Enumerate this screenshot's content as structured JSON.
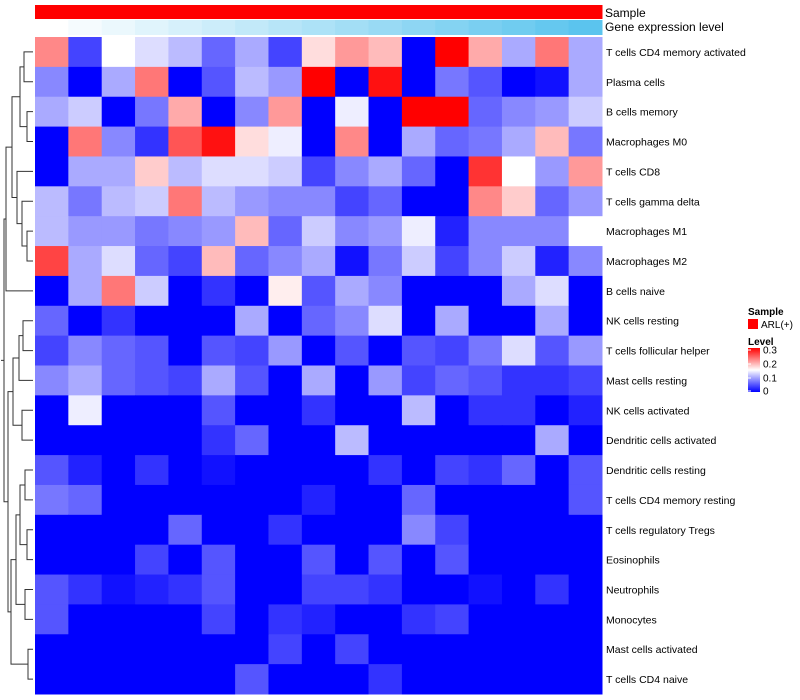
{
  "chart_data": {
    "type": "heatmap",
    "column_annotations": [
      {
        "label": "Sample"
      },
      {
        "label": "Gene expression level"
      }
    ],
    "rows": [
      "T cells CD4 memory activated",
      "Plasma cells",
      "B cells memory",
      "Macrophages M0",
      "T cells CD8",
      "T cells gamma delta",
      "Macrophages M1",
      "Macrophages M2",
      "B cells naive",
      "NK cells resting",
      "T cells follicular helper",
      "Mast cells resting",
      "NK cells activated",
      "Dendritic cells activated",
      "Dendritic cells resting",
      "T cells CD4 memory resting",
      "T cells regulatory  Tregs",
      "Eosinophils",
      "Neutrophils",
      "Monocytes",
      "Mast cells activated",
      "T cells CD4 naive"
    ],
    "n_columns": 17,
    "values": [
      [
        0.22,
        0.04,
        0.15,
        0.13,
        0.11,
        0.06,
        0.1,
        0.04,
        0.17,
        0.21,
        0.19,
        0.0,
        0.3,
        0.2,
        0.1,
        0.23,
        0.1
      ],
      [
        0.08,
        0.0,
        0.1,
        0.23,
        0.0,
        0.05,
        0.11,
        0.09,
        0.3,
        0.0,
        0.29,
        0.0,
        0.07,
        0.05,
        0.0,
        0.01,
        0.1
      ],
      [
        0.1,
        0.12,
        0.0,
        0.07,
        0.2,
        0.0,
        0.08,
        0.21,
        0.0,
        0.14,
        0.0,
        0.3,
        0.3,
        0.06,
        0.08,
        0.09,
        0.12
      ],
      [
        0.0,
        0.23,
        0.08,
        0.03,
        0.25,
        0.29,
        0.17,
        0.14,
        0.0,
        0.22,
        0.0,
        0.1,
        0.06,
        0.07,
        0.1,
        0.19,
        0.07
      ],
      [
        0.0,
        0.1,
        0.1,
        0.18,
        0.11,
        0.13,
        0.13,
        0.12,
        0.04,
        0.08,
        0.1,
        0.06,
        0.0,
        0.27,
        0.15,
        0.09,
        0.21
      ],
      [
        0.11,
        0.07,
        0.11,
        0.12,
        0.23,
        0.11,
        0.09,
        0.08,
        0.08,
        0.04,
        0.06,
        0.0,
        0.0,
        0.22,
        0.18,
        0.06,
        0.09
      ],
      [
        0.11,
        0.09,
        0.09,
        0.07,
        0.08,
        0.09,
        0.19,
        0.06,
        0.12,
        0.08,
        0.09,
        0.14,
        0.02,
        0.08,
        0.08,
        0.08,
        0.15
      ],
      [
        0.26,
        0.1,
        0.13,
        0.06,
        0.04,
        0.19,
        0.06,
        0.08,
        0.1,
        0.01,
        0.07,
        0.12,
        0.04,
        0.08,
        0.12,
        0.02,
        0.08
      ],
      [
        0.0,
        0.1,
        0.23,
        0.12,
        0.0,
        0.03,
        0.0,
        0.16,
        0.05,
        0.1,
        0.08,
        0.0,
        0.0,
        0.0,
        0.1,
        0.13,
        0.0
      ],
      [
        0.06,
        0.0,
        0.03,
        0.0,
        0.0,
        0.0,
        0.1,
        0.0,
        0.06,
        0.08,
        0.13,
        0.0,
        0.1,
        0.0,
        0.0,
        0.1,
        0.0
      ],
      [
        0.04,
        0.08,
        0.06,
        0.05,
        0.0,
        0.05,
        0.04,
        0.09,
        0.0,
        0.05,
        0.0,
        0.05,
        0.04,
        0.07,
        0.13,
        0.05,
        0.09
      ],
      [
        0.08,
        0.1,
        0.06,
        0.05,
        0.04,
        0.1,
        0.05,
        0.0,
        0.1,
        0.0,
        0.09,
        0.04,
        0.06,
        0.05,
        0.03,
        0.03,
        0.04
      ],
      [
        0.0,
        0.14,
        0.0,
        0.0,
        0.0,
        0.05,
        0.0,
        0.0,
        0.03,
        0.0,
        0.0,
        0.11,
        0.0,
        0.03,
        0.03,
        0.0,
        0.02
      ],
      [
        0.0,
        0.0,
        0.0,
        0.0,
        0.0,
        0.03,
        0.06,
        0.0,
        0.0,
        0.11,
        0.0,
        0.0,
        0.0,
        0.0,
        0.0,
        0.1,
        0.0
      ],
      [
        0.05,
        0.02,
        0.0,
        0.03,
        0.0,
        0.01,
        0.0,
        0.0,
        0.0,
        0.0,
        0.03,
        0.0,
        0.04,
        0.03,
        0.06,
        0.0,
        0.05
      ],
      [
        0.07,
        0.06,
        0.0,
        0.0,
        0.0,
        0.0,
        0.0,
        0.0,
        0.02,
        0.0,
        0.0,
        0.06,
        0.0,
        0.0,
        0.0,
        0.0,
        0.05
      ],
      [
        0.0,
        0.0,
        0.0,
        0.0,
        0.06,
        0.0,
        0.0,
        0.03,
        0.0,
        0.0,
        0.0,
        0.08,
        0.04,
        0.0,
        0.0,
        0.0,
        0.0
      ],
      [
        0.0,
        0.0,
        0.0,
        0.04,
        0.0,
        0.05,
        0.0,
        0.0,
        0.05,
        0.0,
        0.05,
        0.0,
        0.05,
        0.0,
        0.0,
        0.0,
        0.0
      ],
      [
        0.05,
        0.03,
        0.01,
        0.02,
        0.03,
        0.05,
        0.0,
        0.0,
        0.04,
        0.04,
        0.03,
        0.0,
        0.0,
        0.01,
        0.0,
        0.03,
        0.0
      ],
      [
        0.05,
        0.0,
        0.0,
        0.0,
        0.0,
        0.04,
        0.0,
        0.03,
        0.02,
        0.0,
        0.0,
        0.03,
        0.04,
        0.0,
        0.0,
        0.0,
        0.0
      ],
      [
        0.0,
        0.0,
        0.0,
        0.0,
        0.0,
        0.0,
        0.0,
        0.04,
        0.0,
        0.04,
        0.0,
        0.0,
        0.0,
        0.0,
        0.0,
        0.0,
        0.0
      ],
      [
        0.0,
        0.0,
        0.0,
        0.0,
        0.0,
        0.0,
        0.05,
        0.0,
        0.0,
        0.0,
        0.03,
        0.0,
        0.0,
        0.0,
        0.0,
        0.0,
        0.0
      ]
    ],
    "sample_group": "ARL(+)",
    "gene_expression_level": [
      0.0,
      0.06,
      0.12,
      0.19,
      0.25,
      0.31,
      0.37,
      0.44,
      0.5,
      0.56,
      0.62,
      0.69,
      0.75,
      0.81,
      0.87,
      0.94,
      1.0
    ],
    "color_scale": {
      "min": 0,
      "mid": 0.15,
      "max": 0.3,
      "low_color": "#0000ff",
      "mid_color": "#ffffff",
      "high_color": "#ff0000"
    },
    "legend": {
      "sample_title": "Sample",
      "sample_entry": "ARL(+)",
      "sample_color": "#ff0000",
      "level_title": "Level",
      "level_ticks": [
        "0.3",
        "0.2",
        "0.1",
        "0"
      ]
    },
    "row_dendrogram": true,
    "annotation_colors": {
      "sample": "#ff0000",
      "expr_low": "#ffffff",
      "expr_high": "#5bc4ee"
    }
  }
}
